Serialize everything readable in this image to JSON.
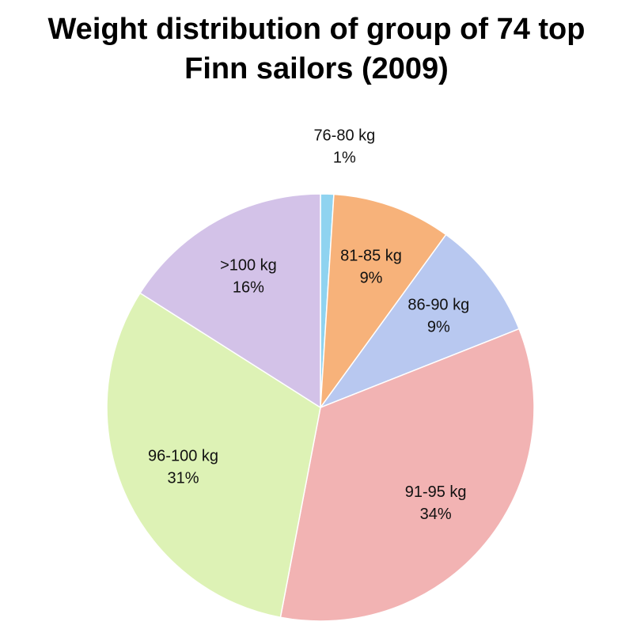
{
  "chart_data": {
    "type": "pie",
    "title": "Weight distribution of group of 74 top Finn sailors (2009)",
    "categories": [
      "76-80 kg",
      "81-85 kg",
      "86-90 kg",
      "91-95 kg",
      "96-100 kg",
      ">100 kg"
    ],
    "values": [
      1,
      9,
      9,
      34,
      31,
      16
    ],
    "value_labels": [
      "1%",
      "9%",
      "9%",
      "34%",
      "31%",
      "16%"
    ],
    "colors": [
      "#8fd3f0",
      "#f7b27a",
      "#b8c8f0",
      "#f2b3b3",
      "#ddf2b5",
      "#d3c2e8"
    ]
  }
}
